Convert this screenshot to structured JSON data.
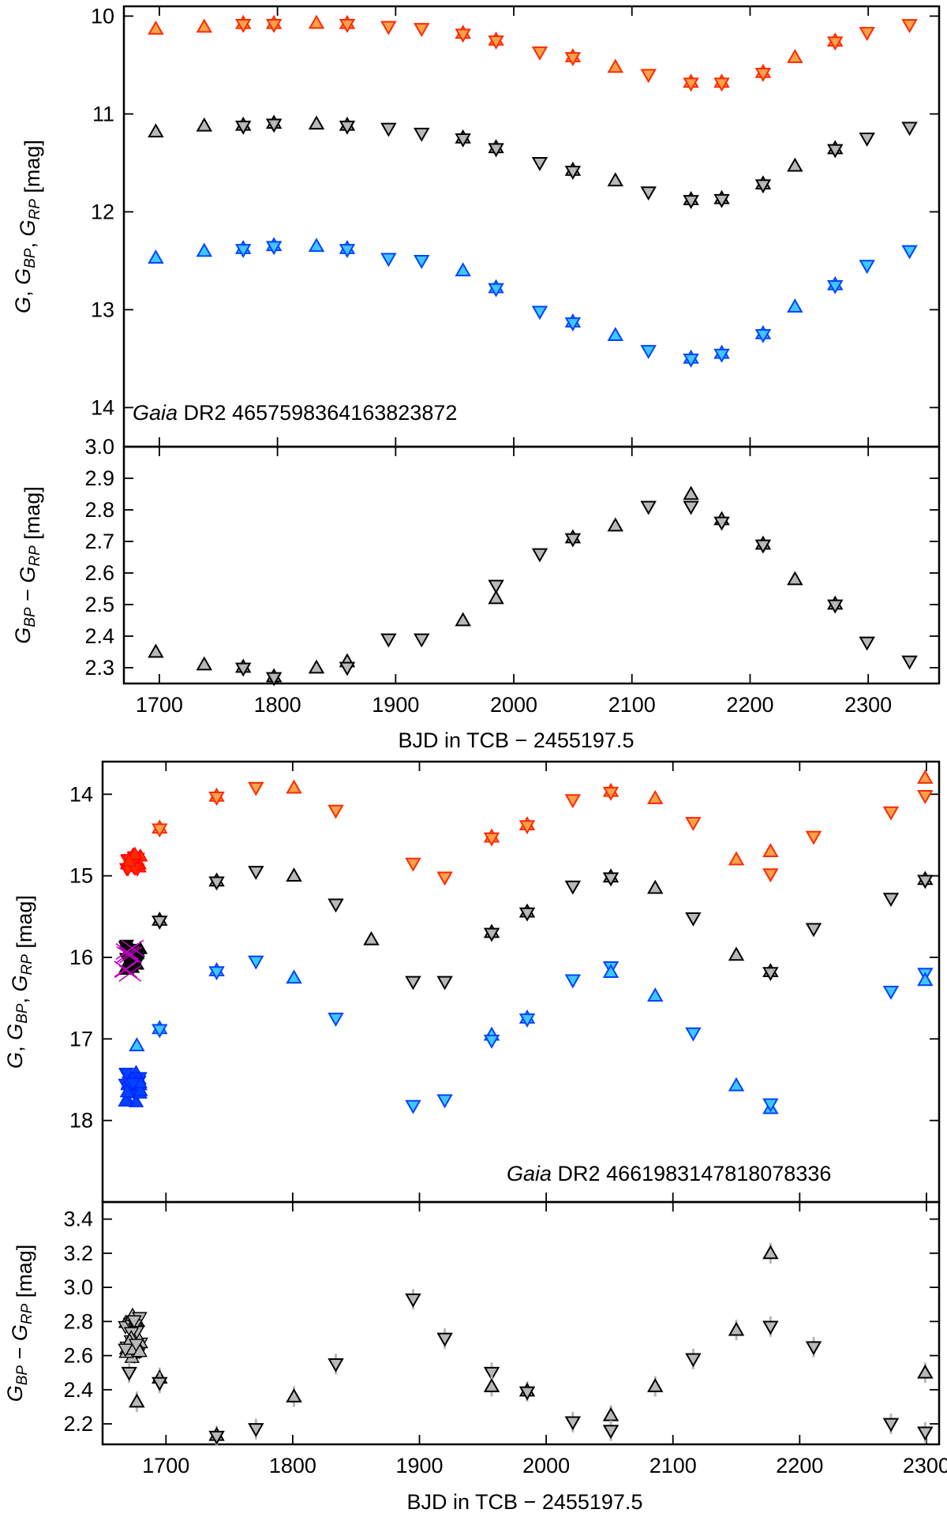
{
  "chart_data": [
    {
      "type": "scatter",
      "panel": "top-magnitudes",
      "ylabel_parts": [
        "G",
        ", ",
        "G",
        "BP",
        ", ",
        "G",
        "RP",
        "  [mag]"
      ],
      "annotation": {
        "italic": "Gaia",
        "rest": " DR2 4657598364163823872"
      },
      "xlim": [
        1670,
        2360
      ],
      "ylim": [
        14.4,
        9.9
      ],
      "y_inverted": true,
      "x_ticks": [
        1700,
        1800,
        1900,
        2000,
        2100,
        2200,
        2300
      ],
      "y_ticks": [
        10,
        11,
        12,
        13,
        14
      ],
      "y_tick_labels": [
        "10",
        "11",
        "12",
        "13",
        "14"
      ],
      "series": [
        {
          "band": "G_RP",
          "color": "#ff2a00",
          "fill": "#f6a24a",
          "x": [
            1697,
            1738,
            1771,
            1797,
            1833,
            1859,
            1894,
            1922,
            1957,
            1985,
            2022,
            2050,
            2086,
            2114,
            2150,
            2176,
            2211,
            2238,
            2272,
            2299,
            2335
          ],
          "y": [
            10.13,
            10.11,
            10.08,
            10.08,
            10.07,
            10.08,
            10.11,
            10.13,
            10.18,
            10.25,
            10.37,
            10.42,
            10.52,
            10.6,
            10.68,
            10.68,
            10.58,
            10.42,
            10.26,
            10.17,
            10.09
          ],
          "marker": [
            "up",
            "up",
            "star",
            "star",
            "up",
            "star",
            "down",
            "down",
            "star",
            "star",
            "down",
            "star",
            "up",
            "down",
            "star",
            "star",
            "star",
            "up",
            "star",
            "down",
            "down"
          ]
        },
        {
          "band": "G",
          "color": "#000000",
          "fill": "#b8b8b8",
          "x": [
            1697,
            1738,
            1771,
            1797,
            1833,
            1859,
            1894,
            1922,
            1957,
            1985,
            2022,
            2050,
            2086,
            2114,
            2150,
            2176,
            2211,
            2238,
            2272,
            2299,
            2335
          ],
          "y": [
            11.18,
            11.12,
            11.12,
            11.1,
            11.1,
            11.12,
            11.15,
            11.2,
            11.25,
            11.35,
            11.5,
            11.58,
            11.68,
            11.8,
            11.88,
            11.87,
            11.72,
            11.53,
            11.36,
            11.25,
            11.14
          ],
          "marker": [
            "up",
            "up",
            "star",
            "star",
            "up",
            "star",
            "down",
            "down",
            "star",
            "star",
            "down",
            "star",
            "up",
            "down",
            "star",
            "star",
            "star",
            "up",
            "star",
            "down",
            "down"
          ]
        },
        {
          "band": "G_BP",
          "color": "#0044ff",
          "fill": "#3fc7ff",
          "x": [
            1697,
            1738,
            1771,
            1797,
            1833,
            1859,
            1894,
            1922,
            1957,
            1985,
            2022,
            2050,
            2086,
            2114,
            2150,
            2176,
            2211,
            2238,
            2272,
            2299,
            2335
          ],
          "y": [
            12.47,
            12.4,
            12.38,
            12.35,
            12.35,
            12.38,
            12.48,
            12.5,
            12.6,
            12.78,
            13.02,
            13.13,
            13.26,
            13.42,
            13.5,
            13.45,
            13.25,
            12.97,
            12.75,
            12.55,
            12.4
          ],
          "marker": [
            "up",
            "up",
            "star",
            "star",
            "up",
            "star",
            "down",
            "down",
            "up",
            "star",
            "down",
            "star",
            "up",
            "down",
            "star",
            "star",
            "star",
            "up",
            "star",
            "down",
            "down"
          ]
        }
      ]
    },
    {
      "type": "scatter",
      "panel": "top-color",
      "ylabel_parts": [
        "G",
        "BP",
        " − ",
        "G",
        "RP",
        "  [mag]"
      ],
      "xlabel": "BJD in TCB − 2455197.5",
      "xlim": [
        1670,
        2360
      ],
      "ylim": [
        2.25,
        3.0
      ],
      "x_ticks": [
        1700,
        1800,
        1900,
        2000,
        2100,
        2200,
        2300
      ],
      "y_ticks": [
        2.3,
        2.4,
        2.5,
        2.6,
        2.7,
        2.8,
        2.9,
        3.0
      ],
      "y_tick_labels": [
        "2.3",
        "2.4",
        "2.5",
        "2.6",
        "2.7",
        "2.8",
        "2.9",
        "3.0"
      ],
      "series": [
        {
          "band": "G_BP-G_RP",
          "color": "#000000",
          "fill": "#b8b8b8",
          "points": [
            {
              "x": 1697,
              "y": 2.35,
              "m": "up"
            },
            {
              "x": 1738,
              "y": 2.31,
              "m": "up"
            },
            {
              "x": 1771,
              "y": 2.3,
              "m": "star"
            },
            {
              "x": 1797,
              "y": 2.27,
              "m": "star"
            },
            {
              "x": 1833,
              "y": 2.3,
              "m": "up"
            },
            {
              "x": 1859,
              "y": 2.32,
              "m": "up"
            },
            {
              "x": 1859,
              "y": 2.3,
              "m": "down"
            },
            {
              "x": 1894,
              "y": 2.39,
              "m": "down"
            },
            {
              "x": 1922,
              "y": 2.39,
              "m": "down"
            },
            {
              "x": 1957,
              "y": 2.45,
              "m": "up"
            },
            {
              "x": 1985,
              "y": 2.56,
              "m": "down"
            },
            {
              "x": 1985,
              "y": 2.52,
              "m": "up"
            },
            {
              "x": 2022,
              "y": 2.66,
              "m": "down"
            },
            {
              "x": 2050,
              "y": 2.71,
              "m": "star"
            },
            {
              "x": 2086,
              "y": 2.75,
              "m": "up"
            },
            {
              "x": 2114,
              "y": 2.81,
              "m": "down"
            },
            {
              "x": 2150,
              "y": 2.85,
              "m": "up"
            },
            {
              "x": 2150,
              "y": 2.81,
              "m": "down"
            },
            {
              "x": 2176,
              "y": 2.77,
              "m": "up"
            },
            {
              "x": 2176,
              "y": 2.76,
              "m": "down"
            },
            {
              "x": 2211,
              "y": 2.69,
              "m": "star"
            },
            {
              "x": 2238,
              "y": 2.58,
              "m": "up"
            },
            {
              "x": 2272,
              "y": 2.5,
              "m": "star"
            },
            {
              "x": 2299,
              "y": 2.38,
              "m": "down"
            },
            {
              "x": 2335,
              "y": 2.32,
              "m": "down"
            }
          ]
        }
      ]
    },
    {
      "type": "scatter",
      "panel": "bottom-magnitudes",
      "ylabel_parts": [
        "G",
        ", ",
        "G",
        "BP",
        ", ",
        "G",
        "RP",
        "  [mag]"
      ],
      "annotation": {
        "italic": "Gaia",
        "rest": " DR2 4661983147818078336"
      },
      "xlim": [
        1650,
        2310
      ],
      "ylim": [
        19.0,
        13.6
      ],
      "y_inverted": true,
      "x_ticks": [
        1700,
        1800,
        1900,
        2000,
        2100,
        2200,
        2300
      ],
      "y_ticks": [
        14,
        15,
        16,
        17,
        18
      ],
      "y_tick_labels": [
        "14",
        "15",
        "16",
        "17",
        "18"
      ],
      "series": [
        {
          "band": "G_RP",
          "color": "#ff2a00",
          "fill": "#f6a24a",
          "x": [
            1695,
            1740,
            1771,
            1801,
            1834,
            1895,
            1920,
            1957,
            1985,
            2021,
            2051,
            2086,
            2116,
            2150,
            2177,
            2177,
            2211,
            2272,
            2299,
            2299
          ],
          "y": [
            14.42,
            14.03,
            13.92,
            13.92,
            14.2,
            14.85,
            15.02,
            14.53,
            14.38,
            14.07,
            13.97,
            14.05,
            14.35,
            14.8,
            14.7,
            14.98,
            14.52,
            14.22,
            13.8,
            14.02
          ],
          "marker": [
            "star",
            "star",
            "down",
            "up",
            "down",
            "down",
            "down",
            "star",
            "star",
            "down",
            "star",
            "up",
            "down",
            "up",
            "up",
            "down",
            "down",
            "down",
            "up",
            "down"
          ]
        },
        {
          "band": "G",
          "color": "#000000",
          "fill": "#b8b8b8",
          "x": [
            1695,
            1740,
            1771,
            1801,
            1834,
            1862,
            1895,
            1920,
            1957,
            1985,
            2021,
            2051,
            2086,
            2116,
            2150,
            2177,
            2211,
            2272,
            2299
          ],
          "y": [
            15.55,
            15.07,
            14.95,
            15.0,
            15.35,
            15.78,
            16.3,
            16.3,
            15.7,
            15.45,
            15.13,
            15.02,
            15.15,
            15.52,
            15.97,
            16.18,
            15.65,
            15.28,
            15.05
          ],
          "marker": [
            "star",
            "star",
            "down",
            "up",
            "down",
            "up",
            "down",
            "down",
            "star",
            "star",
            "down",
            "star",
            "up",
            "down",
            "up",
            "star",
            "down",
            "down",
            "star"
          ]
        },
        {
          "band": "G_BP",
          "color": "#0044ff",
          "fill": "#3fc7ff",
          "x": [
            1677,
            1695,
            1740,
            1771,
            1801,
            1834,
            1895,
            1920,
            1957,
            1957,
            1985,
            2021,
            2051,
            2051,
            2086,
            2116,
            2150,
            2177,
            2177,
            2272,
            2299,
            2299
          ],
          "y": [
            17.08,
            16.88,
            16.17,
            16.05,
            16.25,
            16.75,
            17.82,
            17.75,
            16.95,
            17.02,
            16.75,
            16.28,
            16.12,
            16.18,
            16.47,
            16.93,
            17.57,
            17.85,
            17.8,
            16.42,
            16.2,
            16.28
          ],
          "marker": [
            "up",
            "star",
            "star",
            "down",
            "up",
            "down",
            "down",
            "down",
            "up",
            "down",
            "star",
            "down",
            "down",
            "up",
            "up",
            "down",
            "up",
            "up",
            "down",
            "down",
            "down",
            "up"
          ]
        }
      ],
      "cluster": {
        "x_range": [
          1668,
          1680
        ],
        "G_RP_y_range": [
          14.73,
          14.92
        ],
        "G_y_range": [
          15.85,
          16.15
        ],
        "G_BP_y_range": [
          17.38,
          17.78
        ],
        "flagged_marker_color": "#c000c0"
      }
    },
    {
      "type": "scatter",
      "panel": "bottom-color",
      "ylabel_parts": [
        "G",
        "BP",
        " − ",
        "G",
        "RP",
        "  [mag]"
      ],
      "xlabel": "BJD in TCB − 2455197.5",
      "xlim": [
        1650,
        2310
      ],
      "ylim": [
        2.08,
        3.5
      ],
      "x_ticks": [
        1700,
        1800,
        1900,
        2000,
        2100,
        2200,
        2300
      ],
      "y_ticks": [
        2.2,
        2.4,
        2.6,
        2.8,
        3.0,
        3.2,
        3.4
      ],
      "y_tick_labels": [
        "2.2",
        "2.4",
        "2.6",
        "2.8",
        "3.0",
        "3.2",
        "3.4"
      ],
      "series": [
        {
          "band": "G_BP-G_RP",
          "color": "#000000",
          "fill": "#b8b8b8",
          "points": [
            {
              "x": 1671,
              "y": 2.5,
              "m": "down"
            },
            {
              "x": 1677,
              "y": 2.33,
              "m": "up"
            },
            {
              "x": 1695,
              "y": 2.47,
              "m": "up"
            },
            {
              "x": 1695,
              "y": 2.44,
              "m": "down"
            },
            {
              "x": 1740,
              "y": 2.13,
              "m": "star"
            },
            {
              "x": 1771,
              "y": 2.17,
              "m": "down"
            },
            {
              "x": 1801,
              "y": 2.36,
              "m": "up"
            },
            {
              "x": 1834,
              "y": 2.55,
              "m": "down"
            },
            {
              "x": 1895,
              "y": 2.93,
              "m": "down"
            },
            {
              "x": 1920,
              "y": 2.7,
              "m": "down"
            },
            {
              "x": 1957,
              "y": 2.5,
              "m": "down"
            },
            {
              "x": 1957,
              "y": 2.42,
              "m": "up"
            },
            {
              "x": 1985,
              "y": 2.39,
              "m": "star"
            },
            {
              "x": 2021,
              "y": 2.21,
              "m": "down"
            },
            {
              "x": 2051,
              "y": 2.25,
              "m": "up"
            },
            {
              "x": 2051,
              "y": 2.16,
              "m": "down"
            },
            {
              "x": 2086,
              "y": 2.42,
              "m": "up"
            },
            {
              "x": 2116,
              "y": 2.58,
              "m": "down"
            },
            {
              "x": 2150,
              "y": 2.75,
              "m": "up"
            },
            {
              "x": 2177,
              "y": 3.2,
              "m": "up"
            },
            {
              "x": 2177,
              "y": 2.77,
              "m": "down"
            },
            {
              "x": 2211,
              "y": 2.65,
              "m": "down"
            },
            {
              "x": 2272,
              "y": 2.2,
              "m": "down"
            },
            {
              "x": 2299,
              "y": 2.5,
              "m": "up"
            },
            {
              "x": 2299,
              "y": 2.15,
              "m": "down"
            }
          ]
        }
      ],
      "cluster": {
        "x_range": [
          1668,
          1680
        ],
        "y_range": [
          2.58,
          2.84
        ]
      }
    }
  ]
}
